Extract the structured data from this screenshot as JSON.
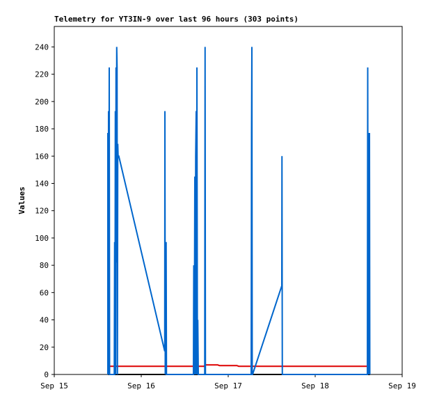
{
  "chart_data": {
    "type": "line",
    "title": "Telemetry for YT3IN-9 over last 96 hours (303 points)",
    "y_label": "Values",
    "xlim": [
      0,
      4
    ],
    "xticks": [
      {
        "value": 0,
        "label": "Sep 15"
      },
      {
        "value": 1,
        "label": "Sep 16"
      },
      {
        "value": 2,
        "label": "Sep 17"
      },
      {
        "value": 3,
        "label": "Sep 18"
      },
      {
        "value": 4,
        "label": "Sep 19"
      }
    ],
    "ylim": [
      0,
      255
    ],
    "yticks": [
      0,
      20,
      40,
      60,
      80,
      100,
      120,
      140,
      160,
      180,
      200,
      220,
      240
    ],
    "grid": false,
    "series": [
      {
        "color": "#dd0000",
        "x": [
          0.62,
          1.72,
          1.74,
          1.88,
          1.9,
          2.1,
          2.12,
          3.63
        ],
        "values": [
          6,
          6,
          7,
          7,
          6.5,
          6.5,
          6,
          6
        ]
      },
      {
        "color": "#000000",
        "x": [
          0.62,
          3.63
        ],
        "values": [
          0,
          0
        ]
      },
      {
        "color": "#0066cc",
        "x": [
          0.616,
          0.616,
          0.62,
          0.624,
          0.628,
          0.632,
          0.636,
          0.69,
          0.694,
          0.698,
          0.702,
          0.706,
          0.71,
          0.714,
          0.718,
          0.722,
          0.726,
          0.73,
          0.734,
          0.742,
          1.27,
          1.272,
          1.276,
          1.286,
          1.29,
          1.294,
          1.6,
          1.604,
          1.61,
          1.616,
          1.62,
          1.626,
          1.632,
          1.636,
          1.64,
          1.646,
          1.65,
          1.656,
          1.66,
          1.73,
          1.734,
          1.738,
          2.264,
          2.268,
          2.272,
          2.276,
          2.28,
          2.616,
          2.618,
          2.622,
          2.626,
          3.6,
          3.604,
          3.608,
          3.616,
          3.62,
          3.624,
          3.628
        ],
        "values": [
          0,
          177,
          0,
          193,
          0,
          225,
          0,
          0,
          97,
          0,
          193,
          0,
          225,
          82,
          240,
          225,
          0,
          169,
          160,
          160,
          17,
          193,
          0,
          97,
          0,
          0,
          0,
          80,
          0,
          145,
          0,
          160,
          193,
          0,
          225,
          0,
          40,
          0,
          0,
          0,
          240,
          0,
          0,
          177,
          240,
          0,
          0,
          65,
          160,
          0,
          0,
          0,
          225,
          0,
          177,
          0,
          177,
          0
        ]
      }
    ]
  }
}
